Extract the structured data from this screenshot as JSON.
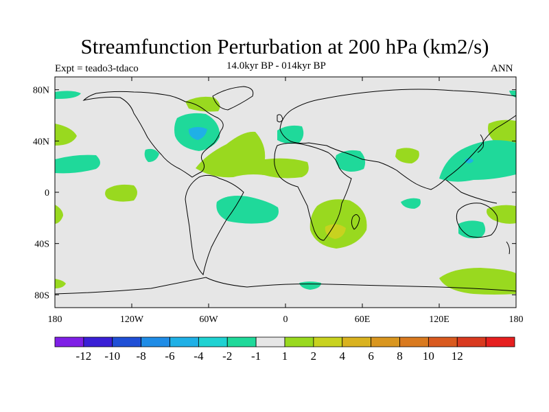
{
  "title": "Streamfunction Perturbation at 200 hPa (km2/s)",
  "left_label": "Expt = teado3-tdaco",
  "center_label": "14.0kyr BP - 014kyr BP",
  "right_label": "ANN",
  "map": {
    "projection": "cylindrical equidistant",
    "lon_range": [
      -180,
      180
    ],
    "lat_range": [
      -90,
      90
    ],
    "lat_ticks": [
      {
        "value": 80,
        "label": "80N"
      },
      {
        "value": 40,
        "label": "40N"
      },
      {
        "value": 0,
        "label": "0"
      },
      {
        "value": -40,
        "label": "40S"
      },
      {
        "value": -80,
        "label": "80S"
      }
    ],
    "lon_ticks": [
      {
        "value": -180,
        "label": "180"
      },
      {
        "value": -120,
        "label": "120W"
      },
      {
        "value": -60,
        "label": "60W"
      },
      {
        "value": 0,
        "label": "0"
      },
      {
        "value": 60,
        "label": "60E"
      },
      {
        "value": 120,
        "label": "120E"
      },
      {
        "value": 180,
        "label": "180"
      }
    ],
    "background_color": "#e6e6e6"
  },
  "colorbar": {
    "colors": [
      "#7f1fe6",
      "#3a1fd6",
      "#1f4fd6",
      "#1f8ce6",
      "#1fb0e6",
      "#1fd2d2",
      "#1fd99a",
      "#e6e6e6",
      "#99d91f",
      "#c8d21f",
      "#d9b21f",
      "#d9961f",
      "#d97a1f",
      "#d95a1f",
      "#d93a1f",
      "#e61f1f"
    ],
    "labels": [
      "-12",
      "-10",
      "-8",
      "-6",
      "-4",
      "-2",
      "-1",
      "1",
      "2",
      "4",
      "6",
      "8",
      "10",
      "12"
    ]
  }
}
